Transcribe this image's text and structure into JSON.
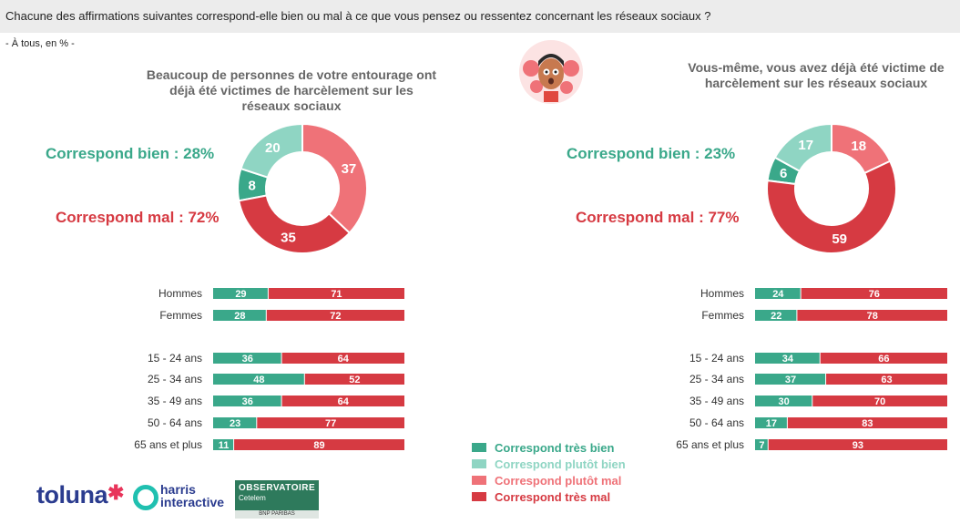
{
  "question": "Chacune des affirmations suivantes correspond-elle bien ou mal à ce que vous pensez ou ressentez concernant les réseaux sociaux ?",
  "base": "- À tous, en % -",
  "colors": {
    "tres_bien": "#3aa88a",
    "plutot_bien": "#8fd5c3",
    "plutot_mal": "#ef7278",
    "tres_mal": "#d63a42"
  },
  "legend": [
    {
      "label": "Correspond très bien",
      "color": "#3aa88a"
    },
    {
      "label": "Correspond plutôt bien",
      "color": "#8fd5c3"
    },
    {
      "label": "Correspond plutôt mal",
      "color": "#ef7278"
    },
    {
      "label": "Correspond très mal",
      "color": "#d63a42"
    }
  ],
  "logos": {
    "toluna": "toluna",
    "harris_line1": "harris",
    "harris_line2": "interactive",
    "obs_title": "OBSERVATOIRE",
    "obs_sub": "Cetelem",
    "obs_foot": "BNP PARIBAS"
  },
  "chart_data": [
    {
      "type": "pie",
      "title": "Beaucoup de personnes de votre entourage ont déjà été victimes de harcèlement sur les réseaux sociaux",
      "summary_good": "Correspond bien : 28%",
      "summary_bad": "Correspond mal : 72%",
      "slices": [
        {
          "name": "Correspond très bien",
          "value": 8
        },
        {
          "name": "Correspond plutôt bien",
          "value": 20
        },
        {
          "name": "Correspond plutôt mal",
          "value": 37
        },
        {
          "name": "Correspond très mal",
          "value": 35
        }
      ],
      "bars": {
        "type": "bar",
        "categories": [
          "Hommes",
          "Femmes",
          "15 - 24 ans",
          "25 - 34 ans",
          "35 - 49 ans",
          "50 - 64 ans",
          "65 ans et plus"
        ],
        "series": [
          {
            "name": "Correspond bien",
            "values": [
              29,
              28,
              36,
              48,
              36,
              23,
              11
            ]
          },
          {
            "name": "Correspond mal",
            "values": [
              71,
              72,
              64,
              52,
              64,
              77,
              89
            ]
          }
        ]
      }
    },
    {
      "type": "pie",
      "title": "Vous-même, vous avez déjà été victime de harcèlement sur les réseaux sociaux",
      "summary_good": "Correspond bien : 23%",
      "summary_bad": "Correspond mal : 77%",
      "slices": [
        {
          "name": "Correspond très bien",
          "value": 6
        },
        {
          "name": "Correspond plutôt bien",
          "value": 17
        },
        {
          "name": "Correspond plutôt mal",
          "value": 18
        },
        {
          "name": "Correspond très mal",
          "value": 59
        }
      ],
      "bars": {
        "type": "bar",
        "categories": [
          "Hommes",
          "Femmes",
          "15 - 24 ans",
          "25 - 34 ans",
          "35 - 49 ans",
          "50 - 64 ans",
          "65 ans et plus"
        ],
        "series": [
          {
            "name": "Correspond bien",
            "values": [
              24,
              22,
              34,
              37,
              30,
              17,
              7
            ]
          },
          {
            "name": "Correspond mal",
            "values": [
              76,
              78,
              66,
              63,
              70,
              83,
              93
            ]
          }
        ]
      }
    }
  ]
}
